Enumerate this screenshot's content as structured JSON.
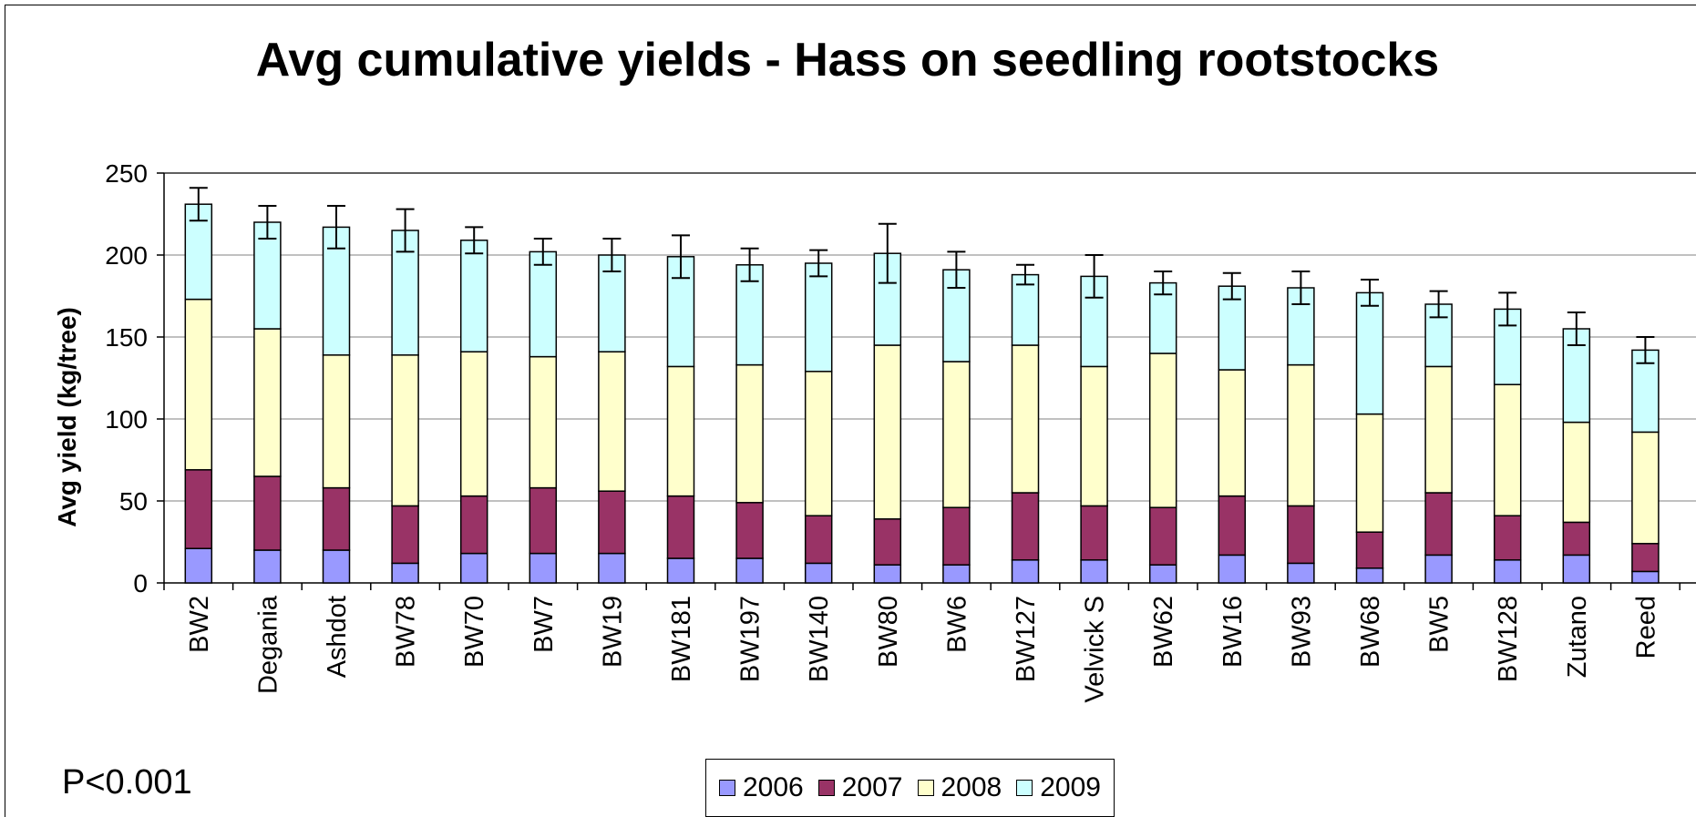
{
  "chart_data": {
    "type": "bar",
    "stacked": true,
    "title": "Avg cumulative yields - Hass on seedling rootstocks",
    "ylabel": "Avg yield (kg/tree)",
    "xlabel": "",
    "ylim": [
      0,
      250
    ],
    "yticks": [
      0,
      50,
      100,
      150,
      200,
      250
    ],
    "grid": true,
    "legend_position": "bottom-center",
    "categories": [
      "BW2",
      "Degania",
      "Ashdot",
      "BW78",
      "BW70",
      "BW7",
      "BW19",
      "BW181",
      "BW197",
      "BW140",
      "BW80",
      "BW6",
      "BW127",
      "Velvick S",
      "BW62",
      "BW16",
      "BW93",
      "BW68",
      "BW5",
      "BW128",
      "Zutano",
      "Reed"
    ],
    "series": [
      {
        "name": "2006",
        "color": "#9999ff",
        "values": [
          21,
          20,
          20,
          12,
          18,
          18,
          18,
          15,
          15,
          12,
          11,
          11,
          14,
          14,
          11,
          17,
          12,
          9,
          17,
          14,
          17,
          7
        ]
      },
      {
        "name": "2007",
        "color": "#993366",
        "values": [
          48,
          45,
          38,
          35,
          35,
          40,
          38,
          38,
          34,
          29,
          28,
          35,
          41,
          33,
          35,
          36,
          35,
          22,
          38,
          27,
          20,
          17
        ]
      },
      {
        "name": "2008",
        "color": "#ffffcc",
        "values": [
          104,
          90,
          81,
          92,
          88,
          80,
          85,
          79,
          84,
          88,
          106,
          89,
          90,
          85,
          94,
          77,
          86,
          72,
          77,
          80,
          61,
          68
        ]
      },
      {
        "name": "2009",
        "color": "#ccffff",
        "values": [
          58,
          65,
          78,
          76,
          68,
          64,
          59,
          67,
          61,
          66,
          56,
          56,
          43,
          55,
          43,
          51,
          47,
          74,
          38,
          46,
          57,
          50
        ]
      }
    ],
    "error_bars": [
      10,
      10,
      13,
      13,
      8,
      8,
      10,
      13,
      10,
      8,
      18,
      11,
      6,
      13,
      7,
      8,
      10,
      8,
      8,
      10,
      10,
      8
    ],
    "annotation": "P<0.001"
  },
  "colors": {
    "grid": "#808080",
    "axis": "#000000",
    "background": "#ffffff"
  }
}
